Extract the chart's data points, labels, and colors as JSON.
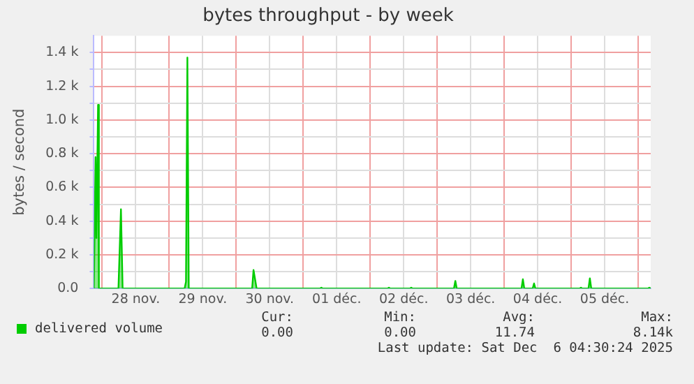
{
  "chart_data": {
    "type": "area",
    "title": "bytes throughput - by week",
    "ylabel": "bytes / second",
    "x": [
      "2025-11-27T21:00",
      "2025-11-27T21:36",
      "2025-11-27T21:54",
      "2025-11-27T22:30",
      "2025-11-27T22:48",
      "2025-11-28T05:48",
      "2025-11-28T06:42",
      "2025-11-28T07:18",
      "2025-11-29T05:30",
      "2025-11-29T06:00",
      "2025-11-29T06:30",
      "2025-11-29T07:00",
      "2025-11-29T07:48",
      "2025-11-30T05:42",
      "2025-11-30T06:12",
      "2025-11-30T07:18",
      "2025-12-01T06:00",
      "2025-12-01T06:30",
      "2025-12-01T07:00",
      "2025-12-02T06:12",
      "2025-12-02T06:42",
      "2025-12-02T07:12",
      "2025-12-02T14:12",
      "2025-12-02T14:42",
      "2025-12-02T15:12",
      "2025-12-03T06:00",
      "2025-12-03T06:30",
      "2025-12-03T07:00",
      "2025-12-04T06:12",
      "2025-12-04T06:42",
      "2025-12-04T07:12",
      "2025-12-04T10:12",
      "2025-12-04T10:42",
      "2025-12-04T11:12",
      "2025-12-05T03:00",
      "2025-12-05T03:30",
      "2025-12-05T04:00",
      "2025-12-05T06:12",
      "2025-12-05T06:42",
      "2025-12-05T07:12",
      "2025-12-06T03:30",
      "2025-12-06T04:00",
      "2025-12-06T04:30"
    ],
    "series": [
      {
        "name": "delivered volume",
        "color": "#00cc00",
        "values": [
          0,
          780,
          300,
          1090,
          0,
          0,
          470,
          0,
          0,
          40,
          1370,
          0,
          0,
          0,
          110,
          0,
          0,
          5,
          0,
          0,
          5,
          0,
          0,
          5,
          0,
          0,
          45,
          0,
          0,
          55,
          0,
          0,
          30,
          0,
          0,
          5,
          0,
          0,
          60,
          0,
          0,
          5,
          0
        ]
      }
    ],
    "xlim": [
      "2025-11-27T21:00",
      "2025-12-06T04:30"
    ],
    "xticks": [
      {
        "value": "2025-11-28T00:00",
        "label": null
      },
      {
        "value": "2025-11-28T12:00",
        "label": "28 nov."
      },
      {
        "value": "2025-11-29T00:00",
        "label": null
      },
      {
        "value": "2025-11-29T12:00",
        "label": "29 nov."
      },
      {
        "value": "2025-11-30T00:00",
        "label": null
      },
      {
        "value": "2025-11-30T12:00",
        "label": "30 nov."
      },
      {
        "value": "2025-12-01T00:00",
        "label": null
      },
      {
        "value": "2025-12-01T12:00",
        "label": "01 déc."
      },
      {
        "value": "2025-12-02T00:00",
        "label": null
      },
      {
        "value": "2025-12-02T12:00",
        "label": "02 déc."
      },
      {
        "value": "2025-12-03T00:00",
        "label": null
      },
      {
        "value": "2025-12-03T12:00",
        "label": "03 déc."
      },
      {
        "value": "2025-12-04T00:00",
        "label": null
      },
      {
        "value": "2025-12-04T12:00",
        "label": "04 déc."
      },
      {
        "value": "2025-12-05T00:00",
        "label": null
      },
      {
        "value": "2025-12-05T12:00",
        "label": "05 déc."
      },
      {
        "value": "2025-12-06T00:00",
        "label": null
      }
    ],
    "ylim": [
      0,
      1500
    ],
    "yticks": [
      {
        "value": 0,
        "label": "0.0"
      },
      {
        "value": 100,
        "label": null
      },
      {
        "value": 200,
        "label": "0.2 k"
      },
      {
        "value": 300,
        "label": null
      },
      {
        "value": 400,
        "label": "0.4 k"
      },
      {
        "value": 500,
        "label": null
      },
      {
        "value": 600,
        "label": "0.6 k"
      },
      {
        "value": 700,
        "label": null
      },
      {
        "value": 800,
        "label": "0.8 k"
      },
      {
        "value": 900,
        "label": null
      },
      {
        "value": 1000,
        "label": "1.0 k"
      },
      {
        "value": 1100,
        "label": null
      },
      {
        "value": 1200,
        "label": "1.2 k"
      },
      {
        "value": 1300,
        "label": null
      },
      {
        "value": 1400,
        "label": "1.4 k"
      }
    ],
    "grid": true,
    "legend": "bottom left",
    "marker": "none",
    "line_style": "solid",
    "annotations": [
      "Cur:",
      "Min:",
      "Avg:",
      "Max:",
      "0.00",
      "0.00",
      "11.74",
      "8.14k",
      "Last update: Sat Dec  6 04:30:24 2025"
    ]
  }
}
